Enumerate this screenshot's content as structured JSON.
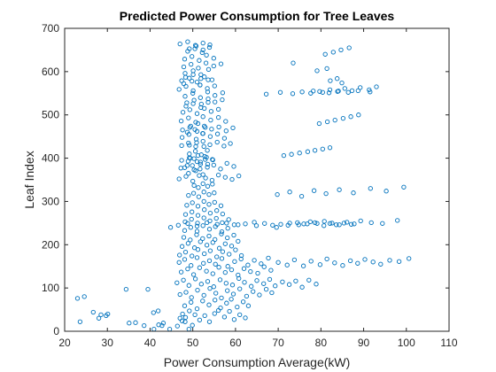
{
  "chart_data": {
    "type": "scatter",
    "title": "Predicted Power Consumption for Tree Leaves",
    "xlabel": "Power Consumption Average(kW)",
    "ylabel": "Leaf Index",
    "xlim": [
      20,
      110
    ],
    "ylim": [
      0,
      700
    ],
    "xticks": [
      "20",
      "30",
      "40",
      "50",
      "60",
      "70",
      "80",
      "90",
      "100",
      "110"
    ],
    "yticks": [
      "0",
      "100",
      "200",
      "300",
      "400",
      "500",
      "600",
      "700"
    ],
    "grid": false,
    "marker": "open-circle",
    "marker_color": "#0072bd",
    "axis_color": "#262626",
    "series": [
      {
        "x": [
          23.0,
          24.6,
          26.7,
          28.5,
          30.1,
          34.4,
          36.6,
          38.6,
          39.5,
          40.8,
          41.9,
          42.0,
          43.1,
          44.6,
          23.6,
          28.0,
          29.7,
          35.1,
          40.9,
          42.8,
          46.4,
          47.0,
          47.6,
          48.2,
          49.1,
          49.9,
          47.5,
          48.3,
          49.2,
          50.5,
          51.6,
          52.8,
          53.9,
          55.1,
          56.0,
          57.4,
          58.6,
          59.7,
          61.0,
          62.3,
          48.1,
          49.6,
          51.0,
          52.3,
          53.8,
          55.2,
          56.5,
          57.9,
          59.0,
          60.4,
          61.8,
          63.0,
          47.0,
          48.4,
          49.7,
          51.1,
          52.6,
          54.0,
          55.4,
          56.7,
          58.1,
          59.5,
          61.0,
          62.6,
          64.1,
          65.6,
          67.2,
          68.5,
          46.3,
          47.8,
          49.1,
          50.6,
          52.0,
          53.5,
          54.9,
          56.4,
          57.8,
          59.3,
          60.8,
          62.1,
          63.7,
          65.0,
          66.6,
          68.0,
          69.3,
          71.0,
          72.6,
          74.1,
          75.6,
          77.2,
          78.9,
          47.3,
          48.8,
          50.2,
          51.6,
          53.2,
          54.7,
          56.1,
          57.6,
          59.1,
          60.6,
          62.0,
          63.5,
          65.2,
          66.7,
          68.3,
          46.8,
          48.1,
          49.6,
          51.0,
          52.5,
          53.9,
          55.3,
          56.8,
          58.2,
          59.8,
          61.3,
          62.9,
          64.4,
          66.0,
          67.7,
          70.0,
          72.1,
          73.8,
          75.9,
          77.7,
          79.8,
          81.4,
          83.2,
          85.1,
          86.9,
          88.6,
          90.3,
          92.2,
          94.0,
          96.1,
          98.3,
          100.6,
          46.9,
          48.3,
          49.8,
          51.2,
          52.7,
          54.1,
          55.6,
          57.0,
          58.5,
          60.0,
          61.4,
          47.5,
          48.9,
          50.4,
          51.8,
          53.3,
          54.7,
          56.2,
          57.6,
          59.1,
          60.6,
          47.9,
          49.4,
          50.9,
          52.3,
          53.8,
          55.2,
          56.7,
          58.1,
          59.6,
          48.1,
          49.5,
          51.0,
          52.4,
          53.9,
          55.3,
          56.8,
          58.2,
          59.7,
          48.2,
          49.7,
          51.1,
          52.6,
          54.0,
          55.5,
          56.9,
          58.4,
          48.3,
          49.8,
          51.2,
          52.7,
          54.1,
          55.6,
          57.0,
          48.6,
          49.9,
          51.2,
          52.6,
          53.8,
          55.1,
          56.6,
          49.0,
          50.2,
          51.4,
          52.6,
          53.8,
          55.0,
          50.3,
          51.3,
          52.4,
          53.5,
          54.6,
          46.8,
          48.4,
          50.0,
          51.5,
          53.0,
          54.5,
          56.0,
          57.6,
          59.2,
          60.8,
          47.2,
          48.7,
          50.3,
          51.8,
          53.4,
          54.9,
          56.5,
          58.0,
          59.6,
          48.9,
          50.3,
          51.8,
          53.2,
          54.7,
          49.2,
          50.6,
          52.0,
          53.4,
          44.8,
          46.6,
          48.8,
          51.0,
          53.3,
          55.7,
          57.9,
          60.6,
          62.3,
          64.4,
          64.9,
          66.8,
          68.7,
          70.6,
          72.7,
          74.8,
          76.8,
          78.6,
          80.7,
          82.1,
          83.6,
          85.4,
          87.1,
          47.4,
          49.0,
          50.7,
          52.4,
          54.0,
          55.7,
          57.3,
          58.8,
          69.6,
          72.3,
          74.5,
          76.0,
          77.5,
          79.1,
          80.8,
          82.6,
          84.3,
          86.1,
          87.8,
          89.3,
          91.8,
          94.4,
          97.9,
          47.5,
          49.1,
          50.8,
          52.4,
          54.1,
          55.8,
          57.4,
          47.6,
          49.3,
          51.0,
          52.7,
          54.4,
          56.1,
          57.8,
          59.4,
          69.8,
          72.7,
          75.5,
          78.4,
          81.2,
          84.3,
          87.6,
          91.6,
          95.3,
          99.4,
          47.3,
          49.0,
          50.7,
          52.4,
          54.2,
          56.0,
          57.7,
          47.7,
          49.3,
          51.0,
          52.7,
          54.3,
          56.0,
          48.6,
          50.3,
          52.0,
          53.6,
          55.2,
          56.9,
          48.2,
          50.0,
          51.8,
          53.5,
          55.2,
          57.0,
          67.2,
          70.5,
          73.4,
          75.6,
          77.6,
          79.7,
          81.9,
          84.1,
          86.4,
          88.7,
          91.5,
          46.8,
          48.4,
          50.1,
          51.7,
          53.4,
          55.1,
          47.4,
          49.2,
          51.0,
          52.7,
          54.5,
          48.2,
          50.1,
          51.9,
          53.7,
          78.2,
          80.4,
          82.1,
          83.9,
          85.6,
          87.3,
          89.2,
          91.3,
          93.0,
          47.9,
          49.6,
          51.3,
          53.1,
          54.9,
          56.6,
          48.1,
          49.8,
          51.5,
          53.2,
          54.9,
          48.8,
          50.5,
          52.2,
          53.9,
          47.0,
          48.8,
          50.6,
          52.4,
          71.3,
          73.1,
          75.0,
          76.9,
          78.6,
          80.4,
          82.1,
          47.4,
          49.2,
          51.0,
          52.8,
          54.6,
          48.1,
          49.9,
          51.7,
          53.5,
          49.0,
          50.7,
          52.4,
          47.9,
          49.8,
          51.7,
          53.6,
          48.3,
          50.1,
          51.9,
          79.6,
          81.5,
          83.3,
          85.2,
          87.0,
          88.8,
          48.4,
          50.1,
          51.9,
          53.6,
          49.2,
          50.9,
          52.6,
          48.7,
          50.5,
          52.3,
          49.5,
          51.2,
          52.9,
          81.0,
          82.9,
          84.7,
          86.6,
          49.2,
          50.8,
          52.4,
          54.0,
          73.5,
          79.1,
          81.4,
          82.2,
          83.8,
          84.9,
          49.4,
          51.2,
          52.9
        ],
        "y": [
          76,
          80,
          44,
          38,
          40,
          97,
          20,
          13,
          97,
          43,
          47,
          15,
          19,
          5,
          22,
          30,
          36,
          19,
          5,
          13,
          12,
          30,
          40,
          22,
          5,
          14,
          24,
          32,
          47,
          38,
          26,
          36,
          22,
          41,
          48,
          33,
          46,
          27,
          38,
          31,
          59,
          67,
          52,
          70,
          61,
          72,
          54,
          65,
          74,
          56,
          68,
          59,
          85,
          90,
          78,
          95,
          83,
          99,
          88,
          77,
          94,
          86,
          98,
          81,
          92,
          84,
          97,
          89,
          112,
          118,
          106,
          121,
          109,
          115,
          103,
          119,
          111,
          107,
          122,
          113,
          104,
          117,
          110,
          120,
          105,
          114,
          108,
          116,
          102,
          118,
          109,
          137,
          144,
          131,
          147,
          139,
          133,
          148,
          136,
          142,
          130,
          145,
          138,
          134,
          149,
          141,
          159,
          166,
          152,
          170,
          157,
          163,
          155,
          168,
          150,
          161,
          167,
          153,
          164,
          156,
          169,
          159,
          153,
          165,
          151,
          162,
          154,
          167,
          158,
          152,
          163,
          157,
          166,
          160,
          155,
          164,
          161,
          168,
          176,
          183,
          174,
          189,
          179,
          186,
          172,
          184,
          178,
          188,
          175,
          196,
          203,
          193,
          207,
          199,
          205,
          192,
          202,
          197,
          208,
          217,
          211,
          223,
          214,
          220,
          212,
          225,
          216,
          222,
          233,
          240,
          231,
          244,
          236,
          242,
          230,
          238,
          246,
          253,
          259,
          250,
          262,
          255,
          261,
          251,
          258,
          270,
          276,
          268,
          281,
          273,
          279,
          271,
          291,
          297,
          289,
          300,
          293,
          298,
          290,
          314,
          319,
          311,
          322,
          316,
          320,
          337,
          332,
          341,
          335,
          340,
          352,
          358,
          347,
          360,
          354,
          349,
          361,
          356,
          351,
          359,
          377,
          383,
          373,
          386,
          379,
          384,
          375,
          388,
          381,
          393,
          399,
          391,
          402,
          396,
          410,
          416,
          408,
          418,
          240,
          245,
          249,
          243,
          251,
          247,
          250,
          246,
          248,
          252,
          244,
          249,
          245,
          247,
          250,
          246,
          248,
          251,
          244,
          249,
          246,
          250,
          247,
          429,
          435,
          427,
          439,
          431,
          437,
          428,
          434,
          240,
          245,
          251,
          248,
          253,
          249,
          254,
          250,
          246,
          252,
          248,
          255,
          251,
          249,
          256,
          448,
          455,
          444,
          457,
          450,
          456,
          446,
          465,
          471,
          462,
          474,
          467,
          472,
          463,
          470,
          316,
          322,
          312,
          325,
          318,
          327,
          320,
          330,
          324,
          333,
          486,
          493,
          483,
          496,
          488,
          494,
          485,
          506,
          512,
          503,
          515,
          508,
          513,
          528,
          534,
          525,
          537,
          530,
          535,
          543,
          550,
          540,
          553,
          545,
          551,
          548,
          552,
          549,
          553,
          550,
          554,
          551,
          555,
          552,
          556,
          553,
          559,
          566,
          556,
          569,
          561,
          567,
          579,
          585,
          576,
          588,
          581,
          596,
          602,
          593,
          605,
          555,
          552,
          558,
          554,
          561,
          556,
          563,
          558,
          565,
          611,
          617,
          608,
          620,
          613,
          618,
          629,
          635,
          626,
          638,
          631,
          647,
          653,
          644,
          656,
          664,
          669,
          661,
          666,
          406,
          409,
          412,
          415,
          418,
          421,
          424,
          395,
          401,
          392,
          404,
          397,
          378,
          383,
          375,
          386,
          365,
          371,
          362,
          572,
          578,
          569,
          581,
          587,
          593,
          584,
          480,
          484,
          488,
          492,
          496,
          500,
          520,
          526,
          517,
          529,
          430,
          436,
          427,
          460,
          466,
          457,
          474,
          480,
          471,
          640,
          645,
          650,
          655,
          653,
          659,
          650,
          662,
          620,
          602,
          607,
          579,
          584,
          574,
          400,
          406,
          397
        ]
      }
    ]
  }
}
